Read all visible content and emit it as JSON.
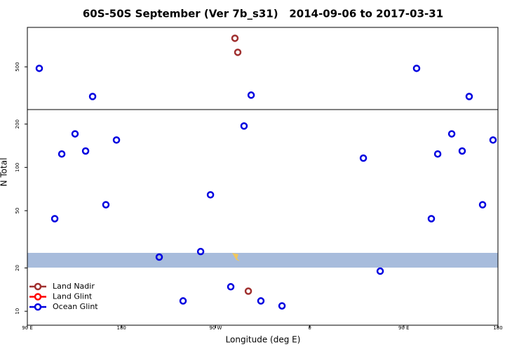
{
  "chart_data": {
    "type": "scatter",
    "title": "60S-50S September (Ver 7b_s31)   2014-09-06 to 2017-03-31",
    "x_label": "Longitude (deg E)",
    "y_label": "N Total",
    "xlim": [
      90,
      540
    ],
    "xticks": [
      {
        "value": 90,
        "label": "90 E"
      },
      180,
      {
        "value": 270,
        "label": "90 W"
      },
      {
        "value": 360,
        "label": "0"
      },
      {
        "value": 450,
        "label": "90 E"
      },
      {
        "value": 540,
        "label": "180"
      }
    ],
    "ylim": [
      8,
      940
    ],
    "yticks": [
      10,
      20,
      50,
      100,
      200,
      500
    ],
    "log_y": true,
    "legend": "bottom-left",
    "series": [
      {
        "name": "Land Nadir",
        "color": "#a0302f",
        "x": [
          288.5,
          291.2,
          301.3
        ],
        "values": [
          790,
          631,
          13.8
        ]
      },
      {
        "name": "Land Glint",
        "color": "#ff0000",
        "x": [],
        "values": []
      },
      {
        "name": "Ocean Glint",
        "color": "#0000e0",
        "x": [
          101.4,
          152.4,
          304,
          462.2,
          512.5,
          122.9,
          135.6,
          145.7,
          175.2,
          116.2,
          165.1,
          216.1,
          238.9,
          255.7,
          265.1,
          284.5,
          297.2,
          313.3,
          333.5,
          411.3,
          427.4,
          476.3,
          482.4,
          495.8,
          505.8,
          525.3,
          535.3
        ],
        "values": [
          488,
          311,
          318,
          488,
          311,
          124,
          171,
          130,
          155,
          44,
          55,
          23.8,
          11.8,
          26,
          64.5,
          14.8,
          194,
          11.8,
          10.9,
          116,
          19,
          44,
          124,
          171,
          130,
          55,
          155
        ]
      }
    ]
  }
}
